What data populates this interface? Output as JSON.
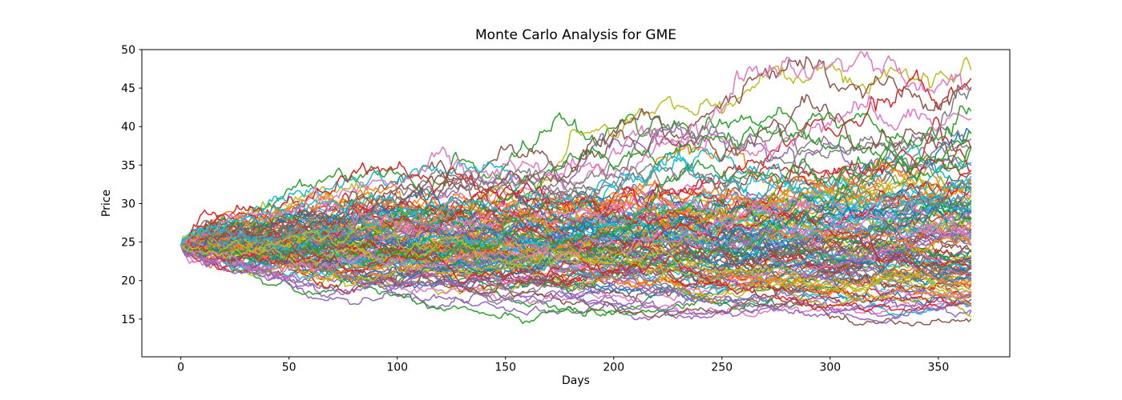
{
  "figure": {
    "background": "#ffffff"
  },
  "chart_data": {
    "type": "line",
    "title": "Monte Carlo Analysis for GME",
    "xlabel": "Days",
    "ylabel": "Price",
    "xlim": [
      -18,
      383
    ],
    "ylim": [
      10.1,
      50
    ],
    "xticks": [
      0,
      50,
      100,
      150,
      200,
      250,
      300,
      350
    ],
    "yticks": [
      15,
      20,
      25,
      30,
      35,
      40,
      45,
      50
    ],
    "grid": false,
    "legend": "none",
    "series_description": "Monte Carlo simulated daily price paths for GME, all starting at the same initial price and diffusing outward; dense central band roughly 17-33 at day 365, highest path reaching about 48, lowest about 12.5",
    "simulation": {
      "num_paths": 130,
      "days": 365,
      "start_price": 24.6,
      "daily_log_drift": 0.00012,
      "daily_log_volatility": 0.0135,
      "seed": 7
    },
    "palette": [
      "#1f77b4",
      "#ff7f0e",
      "#2ca02c",
      "#d62728",
      "#9467bd",
      "#8c564b",
      "#e377c2",
      "#7f7f7f",
      "#bcbd22",
      "#17becf"
    ],
    "line_width": 1.5,
    "axis_color": "#000000",
    "text_color": "#000000",
    "tick_font_size": 14
  }
}
